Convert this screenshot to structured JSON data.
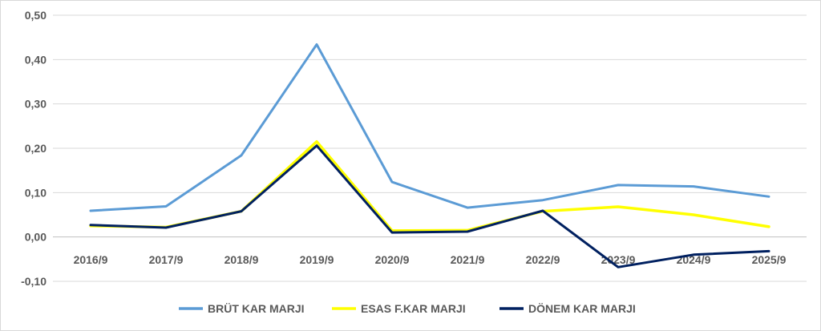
{
  "chart_data": {
    "type": "line",
    "categories": [
      "2016/9",
      "2017/9",
      "2018/9",
      "2019/9",
      "2020/9",
      "2021/9",
      "2022/9",
      "2023/9",
      "2024/9",
      "2025/9"
    ],
    "y_ticks": [
      "0,50",
      "0,40",
      "0,30",
      "0,20",
      "0,10",
      "0,00",
      "-0,10"
    ],
    "ylim": [
      -0.1,
      0.5
    ],
    "grid": true,
    "legend_position": "bottom",
    "series": [
      {
        "name": "BRÜT KAR MARJI",
        "color": "#5b9bd5",
        "values": [
          0.059,
          0.069,
          0.184,
          0.434,
          0.124,
          0.066,
          0.083,
          0.117,
          0.114,
          0.091
        ]
      },
      {
        "name": "ESAS F.KAR MARJI",
        "color": "#ffff00",
        "values": [
          0.025,
          0.022,
          0.058,
          0.215,
          0.014,
          0.015,
          0.058,
          0.068,
          0.05,
          0.023
        ]
      },
      {
        "name": "DÖNEM KAR MARJI",
        "color": "#002060",
        "values": [
          0.027,
          0.021,
          0.058,
          0.206,
          0.01,
          0.012,
          0.059,
          -0.068,
          -0.04,
          -0.032
        ]
      }
    ]
  }
}
